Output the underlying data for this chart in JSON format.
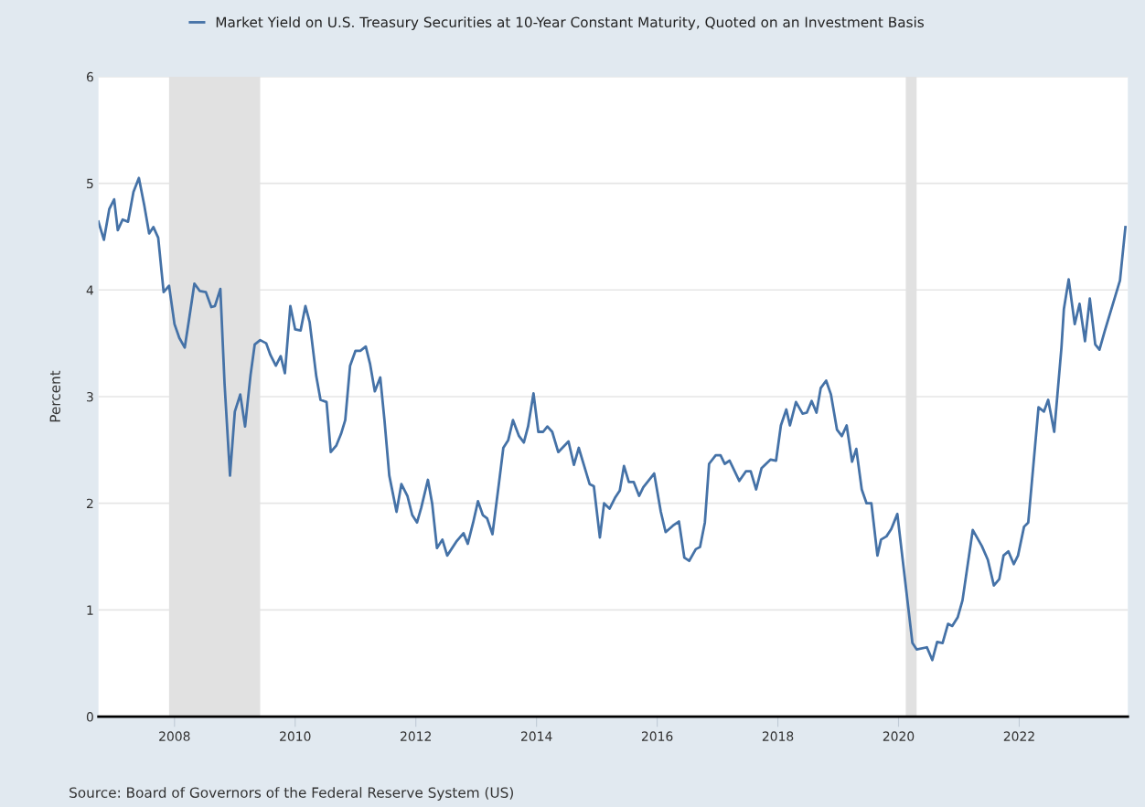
{
  "chart_data": {
    "type": "line",
    "ylabel": "Percent",
    "x": [
      2006.74,
      2006.83,
      2006.92,
      2007.0,
      2007.06,
      2007.14,
      2007.23,
      2007.32,
      2007.41,
      2007.5,
      2007.58,
      2007.65,
      2007.73,
      2007.82,
      2007.91,
      2008.0,
      2008.08,
      2008.17,
      2008.24,
      2008.33,
      2008.42,
      2008.52,
      2008.61,
      2008.67,
      2008.76,
      2008.83,
      2008.92,
      2009.0,
      2009.09,
      2009.17,
      2009.26,
      2009.33,
      2009.42,
      2009.52,
      2009.59,
      2009.68,
      2009.76,
      2009.83,
      2009.92,
      2010.0,
      2010.09,
      2010.17,
      2010.24,
      2010.35,
      2010.42,
      2010.52,
      2010.59,
      2010.68,
      2010.76,
      2010.83,
      2010.91,
      2011.0,
      2011.08,
      2011.17,
      2011.24,
      2011.32,
      2011.41,
      2011.48,
      2011.56,
      2011.68,
      2011.76,
      2011.86,
      2011.94,
      2012.02,
      2012.09,
      2012.2,
      2012.27,
      2012.35,
      2012.44,
      2012.52,
      2012.67,
      2012.79,
      2012.86,
      2012.95,
      2013.03,
      2013.11,
      2013.18,
      2013.27,
      2013.38,
      2013.45,
      2013.53,
      2013.61,
      2013.71,
      2013.79,
      2013.86,
      2013.95,
      2014.03,
      2014.11,
      2014.18,
      2014.26,
      2014.36,
      2014.53,
      2014.62,
      2014.7,
      2014.88,
      2014.95,
      2015.05,
      2015.12,
      2015.21,
      2015.3,
      2015.38,
      2015.45,
      2015.53,
      2015.61,
      2015.7,
      2015.77,
      2015.95,
      2016.06,
      2016.14,
      2016.26,
      2016.36,
      2016.45,
      2016.53,
      2016.64,
      2016.71,
      2016.79,
      2016.86,
      2016.97,
      2017.05,
      2017.12,
      2017.2,
      2017.36,
      2017.47,
      2017.55,
      2017.64,
      2017.73,
      2017.88,
      2017.97,
      2018.05,
      2018.14,
      2018.2,
      2018.3,
      2018.41,
      2018.48,
      2018.56,
      2018.64,
      2018.71,
      2018.8,
      2018.88,
      2018.98,
      2019.06,
      2019.14,
      2019.23,
      2019.3,
      2019.39,
      2019.47,
      2019.55,
      2019.65,
      2019.71,
      2019.8,
      2019.88,
      2019.98,
      2020.23,
      2020.3,
      2020.47,
      2020.56,
      2020.64,
      2020.73,
      2020.82,
      2020.89,
      2020.98,
      2021.06,
      2021.23,
      2021.38,
      2021.48,
      2021.58,
      2021.67,
      2021.74,
      2021.82,
      2021.91,
      2021.98,
      2022.08,
      2022.15,
      2022.32,
      2022.41,
      2022.48,
      2022.58,
      2022.7,
      2022.74,
      2022.82,
      2022.92,
      2023.0,
      2023.09,
      2023.17,
      2023.26,
      2023.33,
      2023.42,
      2023.58,
      2023.67,
      2023.76
    ],
    "series": [
      {
        "name": "Market Yield on U.S. Treasury Securities at 10-Year Constant Maturity, Quoted on an Investment Basis",
        "color": "#4572a7",
        "values": [
          4.64,
          4.47,
          4.76,
          4.85,
          4.56,
          4.66,
          4.64,
          4.92,
          5.05,
          4.79,
          4.53,
          4.59,
          4.49,
          3.98,
          4.04,
          3.68,
          3.55,
          3.46,
          3.72,
          4.06,
          3.99,
          3.98,
          3.84,
          3.85,
          4.01,
          3.12,
          2.26,
          2.86,
          3.02,
          2.72,
          3.2,
          3.49,
          3.53,
          3.5,
          3.39,
          3.29,
          3.38,
          3.22,
          3.85,
          3.63,
          3.62,
          3.85,
          3.7,
          3.19,
          2.97,
          2.95,
          2.48,
          2.54,
          2.65,
          2.78,
          3.29,
          3.43,
          3.43,
          3.47,
          3.31,
          3.05,
          3.18,
          2.78,
          2.26,
          1.92,
          2.18,
          2.07,
          1.89,
          1.82,
          1.96,
          2.22,
          2.0,
          1.58,
          1.66,
          1.51,
          1.64,
          1.72,
          1.62,
          1.82,
          2.02,
          1.89,
          1.86,
          1.71,
          2.2,
          2.52,
          2.59,
          2.78,
          2.63,
          2.57,
          2.72,
          3.03,
          2.67,
          2.67,
          2.72,
          2.67,
          2.48,
          2.58,
          2.36,
          2.52,
          2.18,
          2.16,
          1.68,
          2.0,
          1.95,
          2.05,
          2.12,
          2.35,
          2.2,
          2.2,
          2.07,
          2.15,
          2.28,
          1.92,
          1.73,
          1.79,
          1.83,
          1.49,
          1.46,
          1.57,
          1.59,
          1.82,
          2.37,
          2.45,
          2.45,
          2.37,
          2.4,
          2.21,
          2.3,
          2.3,
          2.13,
          2.33,
          2.41,
          2.4,
          2.73,
          2.88,
          2.73,
          2.95,
          2.84,
          2.85,
          2.96,
          2.85,
          3.08,
          3.15,
          3.02,
          2.69,
          2.63,
          2.73,
          2.39,
          2.51,
          2.13,
          2.0,
          2.0,
          1.51,
          1.66,
          1.69,
          1.76,
          1.9,
          0.69,
          0.63,
          0.65,
          0.53,
          0.7,
          0.69,
          0.87,
          0.85,
          0.93,
          1.09,
          1.75,
          1.6,
          1.47,
          1.23,
          1.29,
          1.51,
          1.55,
          1.43,
          1.51,
          1.78,
          1.82,
          2.9,
          2.86,
          2.97,
          2.67,
          3.46,
          3.82,
          4.1,
          3.68,
          3.87,
          3.52,
          3.92,
          3.49,
          3.44,
          3.62,
          3.92,
          4.09,
          4.59
        ]
      }
    ],
    "xlim": [
      2006.74,
      2023.8
    ],
    "xticks": [
      2008,
      2010,
      2012,
      2014,
      2016,
      2018,
      2020,
      2022
    ],
    "ylim": [
      0,
      6
    ],
    "yticks": [
      0,
      1,
      2,
      3,
      4,
      5,
      6
    ],
    "bands": [
      {
        "axis": "x",
        "from": 2007.91,
        "to": 2009.42,
        "color": "#e1e1e1"
      },
      {
        "axis": "x",
        "from": 2020.12,
        "to": 2020.3,
        "color": "#e1e1e1"
      }
    ],
    "grid": "y",
    "legend": "top left",
    "marker": "none",
    "line_style": "solid",
    "annotations": [
      "Source: Board of Governors of the Federal Reserve System (US)"
    ]
  }
}
